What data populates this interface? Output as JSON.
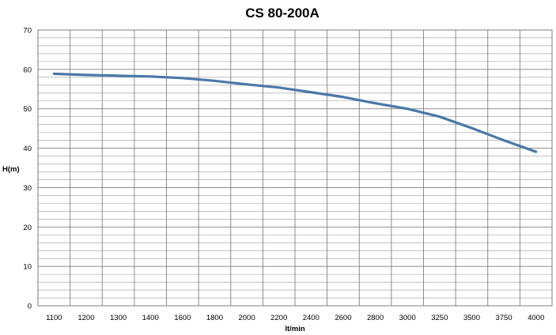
{
  "chart_data": {
    "type": "line",
    "title": "CS 80-200A",
    "xlabel": "lt/min",
    "ylabel": "H(m)",
    "categories": [
      "1100",
      "1200",
      "1300",
      "1400",
      "1600",
      "1800",
      "2000",
      "2200",
      "2400",
      "2600",
      "2800",
      "3000",
      "3250",
      "3500",
      "3750",
      "4000"
    ],
    "ylim": [
      0,
      70
    ],
    "yticks": [
      0,
      10,
      20,
      30,
      40,
      50,
      60,
      70
    ],
    "y_minor_step": 2,
    "grid": true,
    "legend": "none",
    "series": [
      {
        "color": "#4a78a8",
        "values": [
          58.9,
          58.6,
          58.4,
          58.2,
          57.8,
          57.1,
          56.2,
          55.4,
          54.2,
          53.0,
          51.4,
          50.0,
          48.0,
          45.1,
          42.0,
          39.1
        ]
      }
    ]
  }
}
